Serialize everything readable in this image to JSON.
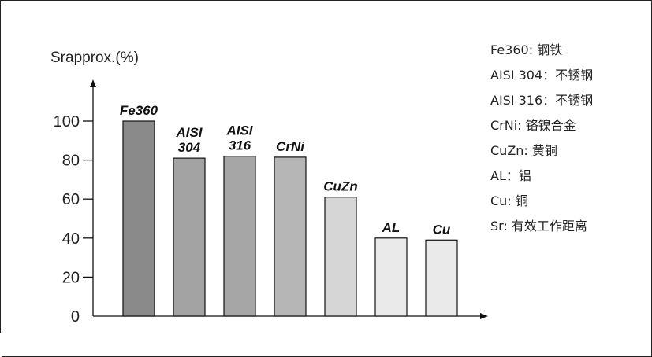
{
  "chart_data": {
    "type": "bar",
    "ylabel": "Srapprox.(%)",
    "ylim": [
      0,
      100
    ],
    "yticks": [
      0,
      20,
      40,
      60,
      80,
      100
    ],
    "grid": false,
    "legend_position": "right",
    "categories": [
      [
        "Fe360"
      ],
      [
        "AISI",
        "304"
      ],
      [
        "AISI",
        "316"
      ],
      [
        "CrNi"
      ],
      [
        "CuZn"
      ],
      [
        "AL"
      ],
      [
        "Cu"
      ]
    ],
    "values": [
      100,
      81,
      82,
      81.5,
      61,
      40,
      39
    ],
    "bar_colors": [
      "#8a8a8a",
      "#a3a3a3",
      "#a6a6a6",
      "#b6b6b6",
      "#d6d6d6",
      "#eaeaea",
      "#eaeaea"
    ]
  },
  "legend": [
    "Fe360: 钢铁",
    "AISI 304：不锈钢",
    "AISI 316：不锈钢",
    "CrNi: 铬镍合金",
    "CuZn: 黄铜",
    "AL：铝",
    "Cu: 铜",
    "Sr: 有效工作距离"
  ]
}
